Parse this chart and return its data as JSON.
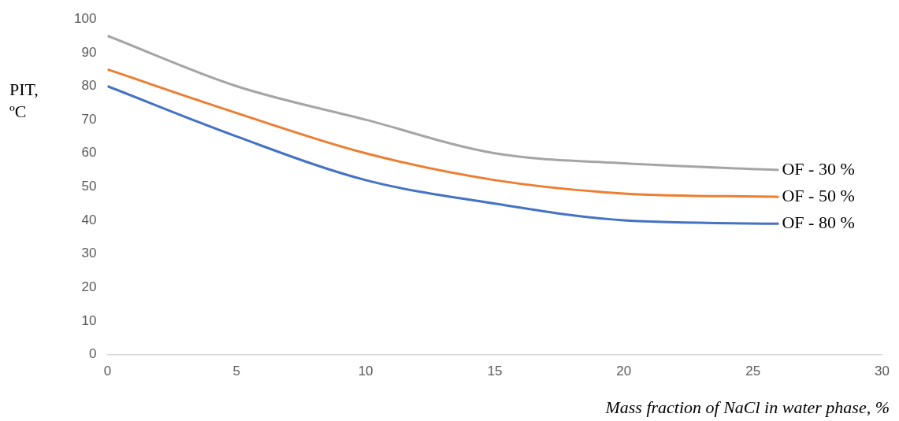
{
  "chart_data": {
    "type": "line",
    "xlabel": "Mass fraction of NaCl in water phase, %",
    "ylabel": "PIT, ºC",
    "x": [
      0,
      5,
      10,
      15,
      20,
      26
    ],
    "xlim": [
      0,
      30
    ],
    "xticks": [
      0,
      5,
      10,
      15,
      20,
      25,
      30
    ],
    "ylim": [
      0,
      100
    ],
    "yticks": [
      0,
      10,
      20,
      30,
      40,
      50,
      60,
      70,
      80,
      90,
      100
    ],
    "grid": false,
    "legend": false,
    "marker": "none",
    "line_style": "solid",
    "series": [
      {
        "name": "OF - 30 %",
        "color": "#a5a5a5",
        "values": [
          95,
          80,
          70,
          60,
          57,
          55
        ]
      },
      {
        "name": "OF - 50 %",
        "color": "#ed7d31",
        "values": [
          85,
          72,
          60,
          52,
          48,
          47
        ]
      },
      {
        "name": "OF - 80 %",
        "color": "#4472c4",
        "values": [
          80,
          65,
          52,
          45,
          40,
          39
        ]
      }
    ]
  }
}
